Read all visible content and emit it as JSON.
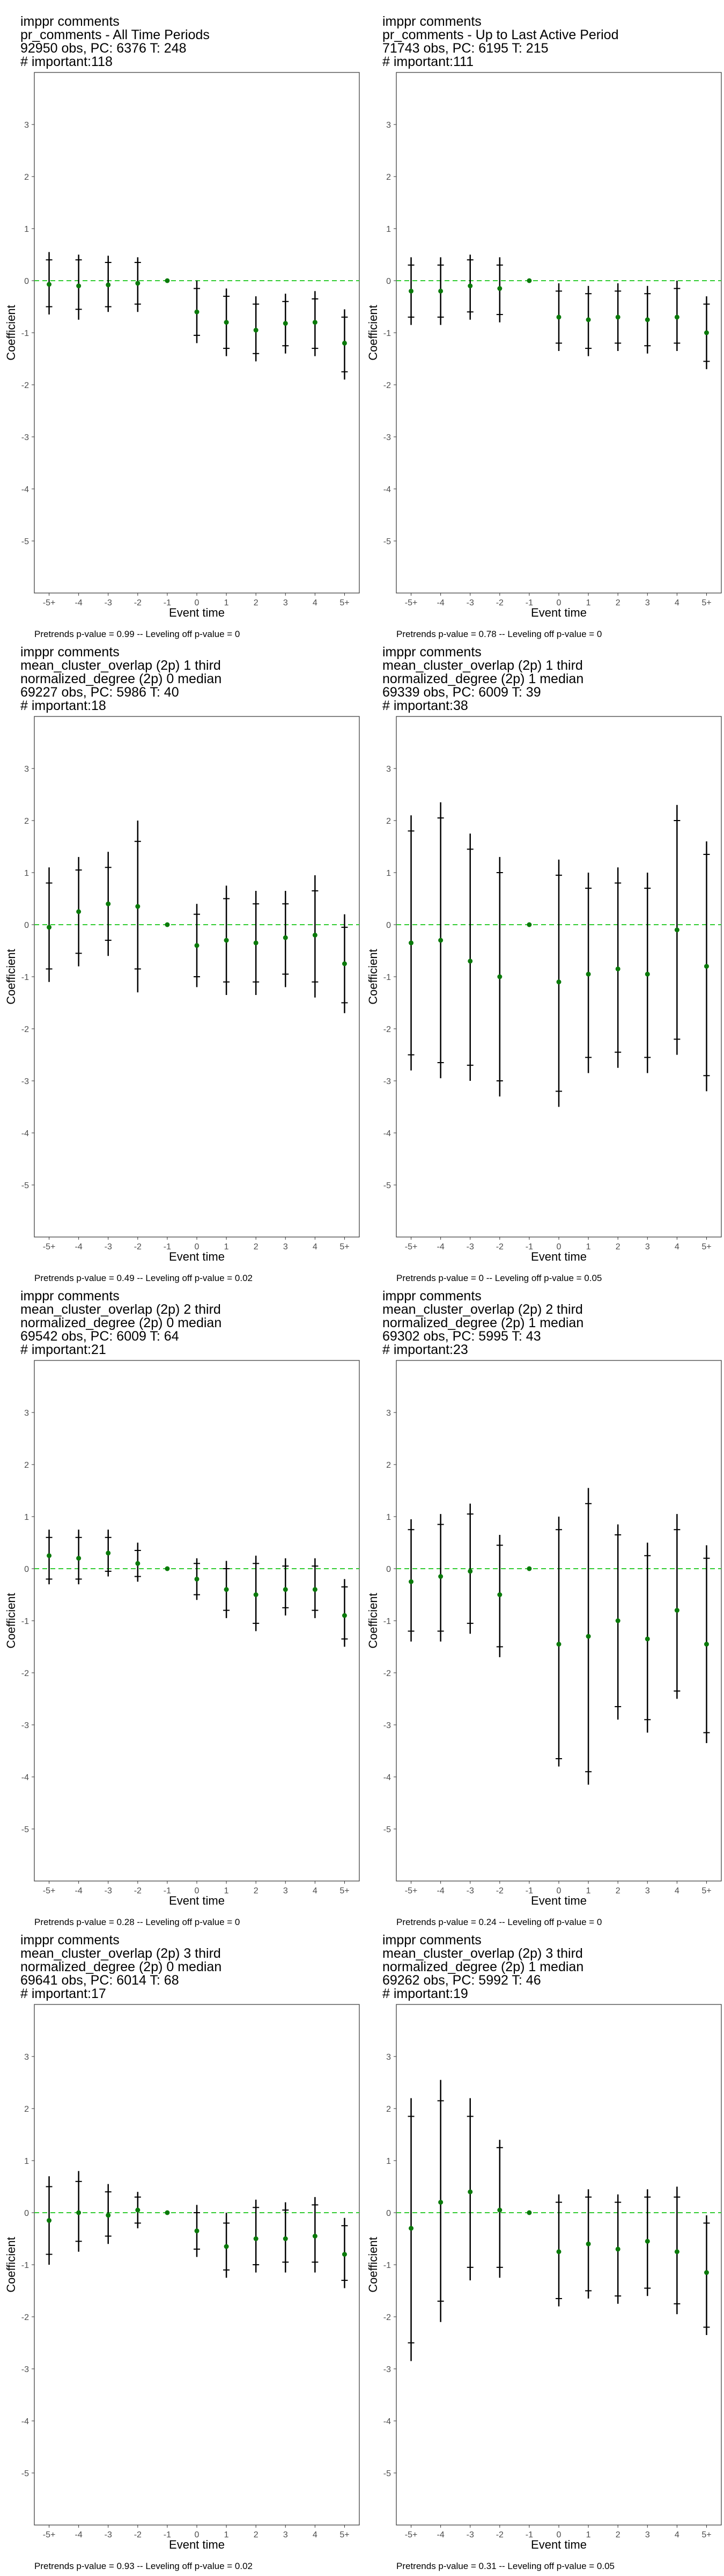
{
  "chart_data": [
    {
      "type": "scatter",
      "title_lines": [
        " imppr comments",
        "pr_comments - All Time Periods",
        "92950 obs, PC: 6376 T: 248",
        "# important:118"
      ],
      "xlabel": "Event time",
      "ylabel": "Coefficient",
      "categories": [
        "-5+",
        "-4",
        "-3",
        "-2",
        "-1",
        "0",
        "1",
        "2",
        "3",
        "4",
        "5+"
      ],
      "ylim": [
        -6,
        4
      ],
      "yticks": [
        -5,
        -4,
        -3,
        -2,
        -1,
        0,
        1,
        2,
        3
      ],
      "reference_line": 0,
      "estimate": [
        -0.07,
        -0.1,
        -0.08,
        -0.05,
        0,
        -0.6,
        -0.8,
        -0.95,
        -0.82,
        -0.8,
        -1.2
      ],
      "ci_outer_low": [
        -0.65,
        -0.75,
        -0.6,
        -0.6,
        0,
        -1.2,
        -1.45,
        -1.55,
        -1.4,
        -1.45,
        -1.9
      ],
      "ci_outer_high": [
        0.55,
        0.5,
        0.48,
        0.45,
        0,
        0.0,
        -0.15,
        -0.3,
        -0.25,
        -0.2,
        -0.55
      ],
      "ci_inner_low": [
        -0.5,
        -0.55,
        -0.5,
        -0.45,
        0,
        -1.05,
        -1.3,
        -1.4,
        -1.25,
        -1.3,
        -1.75
      ],
      "ci_inner_high": [
        0.4,
        0.4,
        0.35,
        0.35,
        0,
        -0.15,
        -0.3,
        -0.45,
        -0.4,
        -0.35,
        -0.7
      ],
      "footnote": "Pretrends p-value = 0.99 -- Leveling off p-value = 0",
      "colors": {
        "point": "#0a7a0a",
        "ref_line": "#33cc33",
        "ci": "#000000"
      }
    },
    {
      "type": "scatter",
      "title_lines": [
        " imppr comments",
        "pr_comments - Up to Last Active Period",
        "71743 obs, PC: 6195 T: 215",
        "# important:111"
      ],
      "xlabel": "Event time",
      "ylabel": "Coefficient",
      "categories": [
        "-5+",
        "-4",
        "-3",
        "-2",
        "-1",
        "0",
        "1",
        "2",
        "3",
        "4",
        "5+"
      ],
      "ylim": [
        -6,
        4
      ],
      "yticks": [
        -5,
        -4,
        -3,
        -2,
        -1,
        0,
        1,
        2,
        3
      ],
      "reference_line": 0,
      "estimate": [
        -0.2,
        -0.2,
        -0.1,
        -0.15,
        0,
        -0.7,
        -0.75,
        -0.7,
        -0.75,
        -0.7,
        -1.0
      ],
      "ci_outer_low": [
        -0.85,
        -0.85,
        -0.75,
        -0.8,
        0,
        -1.35,
        -1.45,
        -1.35,
        -1.4,
        -1.35,
        -1.7
      ],
      "ci_outer_high": [
        0.45,
        0.45,
        0.5,
        0.45,
        0,
        -0.05,
        -0.1,
        -0.05,
        -0.1,
        0.0,
        -0.3
      ],
      "ci_inner_low": [
        -0.7,
        -0.7,
        -0.6,
        -0.65,
        0,
        -1.2,
        -1.3,
        -1.2,
        -1.25,
        -1.2,
        -1.55
      ],
      "ci_inner_high": [
        0.3,
        0.3,
        0.4,
        0.3,
        0,
        -0.2,
        -0.25,
        -0.2,
        -0.25,
        -0.15,
        -0.45
      ],
      "footnote": "Pretrends p-value = 0.78 -- Leveling off p-value = 0",
      "colors": {
        "point": "#0a7a0a",
        "ref_line": "#33cc33",
        "ci": "#000000"
      }
    },
    {
      "type": "scatter",
      "title_lines": [
        " imppr comments",
        "mean_cluster_overlap (2p) 1 third",
        "normalized_degree (2p) 0 median",
        "69227 obs, PC: 5986 T: 40",
        "# important:18"
      ],
      "xlabel": "Event time",
      "ylabel": "Coefficient",
      "categories": [
        "-5+",
        "-4",
        "-3",
        "-2",
        "-1",
        "0",
        "1",
        "2",
        "3",
        "4",
        "5+"
      ],
      "ylim": [
        -6,
        4
      ],
      "yticks": [
        -5,
        -4,
        -3,
        -2,
        -1,
        0,
        1,
        2,
        3
      ],
      "reference_line": 0,
      "estimate": [
        -0.05,
        0.25,
        0.4,
        0.35,
        0,
        -0.4,
        -0.3,
        -0.35,
        -0.25,
        -0.2,
        -0.75
      ],
      "ci_outer_low": [
        -1.1,
        -0.8,
        -0.6,
        -1.3,
        0,
        -1.2,
        -1.35,
        -1.35,
        -1.2,
        -1.4,
        -1.7
      ],
      "ci_outer_high": [
        1.1,
        1.3,
        1.4,
        2.0,
        0,
        0.4,
        0.75,
        0.65,
        0.65,
        0.95,
        0.2
      ],
      "ci_inner_low": [
        -0.85,
        -0.55,
        -0.3,
        -0.85,
        0,
        -1.0,
        -1.1,
        -1.1,
        -0.95,
        -1.1,
        -1.5
      ],
      "ci_inner_high": [
        0.8,
        1.05,
        1.1,
        1.6,
        0,
        0.2,
        0.5,
        0.4,
        0.4,
        0.65,
        -0.05
      ],
      "footnote": "Pretrends p-value = 0.49 -- Leveling off p-value = 0.02",
      "colors": {
        "point": "#0a7a0a",
        "ref_line": "#33cc33",
        "ci": "#000000"
      }
    },
    {
      "type": "scatter",
      "title_lines": [
        " imppr comments",
        "mean_cluster_overlap (2p) 1 third",
        "normalized_degree (2p) 1 median",
        "69339 obs, PC: 6009 T: 39",
        "# important:38"
      ],
      "xlabel": "Event time",
      "ylabel": "Coefficient",
      "categories": [
        "-5+",
        "-4",
        "-3",
        "-2",
        "-1",
        "0",
        "1",
        "2",
        "3",
        "4",
        "5+"
      ],
      "ylim": [
        -6,
        4
      ],
      "yticks": [
        -5,
        -4,
        -3,
        -2,
        -1,
        0,
        1,
        2,
        3
      ],
      "reference_line": 0,
      "estimate": [
        -0.35,
        -0.3,
        -0.7,
        -1.0,
        0,
        -1.1,
        -0.95,
        -0.85,
        -0.95,
        -0.1,
        -0.8
      ],
      "ci_outer_low": [
        -2.8,
        -2.95,
        -3.0,
        -3.3,
        0,
        -3.5,
        -2.85,
        -2.75,
        -2.85,
        -2.5,
        -3.2
      ],
      "ci_outer_high": [
        2.1,
        2.35,
        1.75,
        1.3,
        0,
        1.25,
        1.0,
        1.1,
        1.0,
        2.3,
        1.6
      ],
      "ci_inner_low": [
        -2.5,
        -2.65,
        -2.7,
        -3.0,
        0,
        -3.2,
        -2.55,
        -2.45,
        -2.55,
        -2.2,
        -2.9
      ],
      "ci_inner_high": [
        1.8,
        2.05,
        1.45,
        1.0,
        0,
        0.95,
        0.7,
        0.8,
        0.7,
        2.0,
        1.35
      ],
      "footnote": "Pretrends p-value = 0 -- Leveling off p-value = 0.05",
      "colors": {
        "point": "#0a7a0a",
        "ref_line": "#33cc33",
        "ci": "#000000"
      }
    },
    {
      "type": "scatter",
      "title_lines": [
        " imppr comments",
        "mean_cluster_overlap (2p) 2 third",
        "normalized_degree (2p) 0 median",
        "69542 obs, PC: 6009 T: 64",
        "# important:21"
      ],
      "xlabel": "Event time",
      "ylabel": "Coefficient",
      "categories": [
        "-5+",
        "-4",
        "-3",
        "-2",
        "-1",
        "0",
        "1",
        "2",
        "3",
        "4",
        "5+"
      ],
      "ylim": [
        -6,
        4
      ],
      "yticks": [
        -5,
        -4,
        -3,
        -2,
        -1,
        0,
        1,
        2,
        3
      ],
      "reference_line": 0,
      "estimate": [
        0.25,
        0.2,
        0.3,
        0.1,
        0,
        -0.2,
        -0.4,
        -0.5,
        -0.4,
        -0.4,
        -0.9
      ],
      "ci_outer_low": [
        -0.3,
        -0.3,
        -0.15,
        -0.25,
        0,
        -0.6,
        -0.95,
        -1.2,
        -0.9,
        -0.95,
        -1.5
      ],
      "ci_outer_high": [
        0.75,
        0.75,
        0.75,
        0.5,
        0,
        0.2,
        0.15,
        0.25,
        0.2,
        0.2,
        -0.2
      ],
      "ci_inner_low": [
        -0.2,
        -0.2,
        -0.05,
        -0.15,
        0,
        -0.5,
        -0.8,
        -1.05,
        -0.75,
        -0.8,
        -1.35
      ],
      "ci_inner_high": [
        0.6,
        0.6,
        0.6,
        0.35,
        0,
        0.1,
        0.0,
        0.1,
        0.05,
        0.05,
        -0.35
      ],
      "footnote": "Pretrends p-value = 0.28 -- Leveling off p-value = 0",
      "colors": {
        "point": "#0a7a0a",
        "ref_line": "#33cc33",
        "ci": "#000000"
      }
    },
    {
      "type": "scatter",
      "title_lines": [
        " imppr comments",
        "mean_cluster_overlap (2p) 2 third",
        "normalized_degree (2p) 1 median",
        "69302 obs, PC: 5995 T: 43",
        "# important:23"
      ],
      "xlabel": "Event time",
      "ylabel": "Coefficient",
      "categories": [
        "-5+",
        "-4",
        "-3",
        "-2",
        "-1",
        "0",
        "1",
        "2",
        "3",
        "4",
        "5+"
      ],
      "ylim": [
        -6,
        4
      ],
      "yticks": [
        -5,
        -4,
        -3,
        -2,
        -1,
        0,
        1,
        2,
        3
      ],
      "reference_line": 0,
      "estimate": [
        -0.25,
        -0.15,
        -0.05,
        -0.5,
        0,
        -1.45,
        -1.3,
        -1.0,
        -1.35,
        -0.8,
        -1.45
      ],
      "ci_outer_low": [
        -1.4,
        -1.4,
        -1.25,
        -1.7,
        0,
        -3.8,
        -4.15,
        -2.9,
        -3.15,
        -2.5,
        -3.35
      ],
      "ci_outer_high": [
        0.95,
        1.05,
        1.25,
        0.65,
        0,
        1.0,
        1.55,
        0.85,
        0.5,
        1.05,
        0.45
      ],
      "ci_inner_low": [
        -1.2,
        -1.2,
        -1.05,
        -1.5,
        0,
        -3.65,
        -3.9,
        -2.65,
        -2.9,
        -2.35,
        -3.15
      ],
      "ci_inner_high": [
        0.75,
        0.85,
        1.05,
        0.45,
        0,
        0.75,
        1.25,
        0.65,
        0.25,
        0.75,
        0.2
      ],
      "footnote": "Pretrends p-value = 0.24 -- Leveling off p-value = 0",
      "colors": {
        "point": "#0a7a0a",
        "ref_line": "#33cc33",
        "ci": "#000000"
      }
    },
    {
      "type": "scatter",
      "title_lines": [
        " imppr comments",
        "mean_cluster_overlap (2p) 3 third",
        "normalized_degree (2p) 0 median",
        "69641 obs, PC: 6014 T: 68",
        "# important:17"
      ],
      "xlabel": "Event time",
      "ylabel": "Coefficient",
      "categories": [
        "-5+",
        "-4",
        "-3",
        "-2",
        "-1",
        "0",
        "1",
        "2",
        "3",
        "4",
        "5+"
      ],
      "ylim": [
        -6,
        4
      ],
      "yticks": [
        -5,
        -4,
        -3,
        -2,
        -1,
        0,
        1,
        2,
        3
      ],
      "reference_line": 0,
      "estimate": [
        -0.15,
        0.0,
        -0.05,
        0.05,
        0,
        -0.35,
        -0.65,
        -0.5,
        -0.5,
        -0.45,
        -0.8
      ],
      "ci_outer_low": [
        -1.0,
        -0.75,
        -0.6,
        -0.3,
        0,
        -0.85,
        -1.25,
        -1.15,
        -1.15,
        -1.15,
        -1.45
      ],
      "ci_outer_high": [
        0.7,
        0.8,
        0.55,
        0.4,
        0,
        0.15,
        -0.0,
        0.25,
        0.2,
        0.3,
        -0.1
      ],
      "ci_inner_low": [
        -0.8,
        -0.55,
        -0.45,
        -0.2,
        0,
        -0.7,
        -1.1,
        -1.0,
        -0.95,
        -0.95,
        -1.3
      ],
      "ci_inner_high": [
        0.5,
        0.6,
        0.4,
        0.3,
        0,
        0.0,
        -0.2,
        0.1,
        0.05,
        0.15,
        -0.25
      ],
      "footnote": "Pretrends p-value = 0.93 -- Leveling off p-value = 0.02",
      "colors": {
        "point": "#0a7a0a",
        "ref_line": "#33cc33",
        "ci": "#000000"
      }
    },
    {
      "type": "scatter",
      "title_lines": [
        " imppr comments",
        "mean_cluster_overlap (2p) 3 third",
        "normalized_degree (2p) 1 median",
        "69262 obs, PC: 5992 T: 46",
        "# important:19"
      ],
      "xlabel": "Event time",
      "ylabel": "Coefficient",
      "categories": [
        "-5+",
        "-4",
        "-3",
        "-2",
        "-1",
        "0",
        "1",
        "2",
        "3",
        "4",
        "5+"
      ],
      "ylim": [
        -6,
        4
      ],
      "yticks": [
        -5,
        -4,
        -3,
        -2,
        -1,
        0,
        1,
        2,
        3
      ],
      "reference_line": 0,
      "estimate": [
        -0.3,
        0.2,
        0.4,
        0.05,
        0,
        -0.75,
        -0.6,
        -0.7,
        -0.55,
        -0.75,
        -1.15
      ],
      "ci_outer_low": [
        -2.85,
        -2.1,
        -1.3,
        -1.25,
        0,
        -1.8,
        -1.65,
        -1.75,
        -1.6,
        -1.95,
        -2.35
      ],
      "ci_outer_high": [
        2.2,
        2.55,
        2.2,
        1.4,
        0,
        0.35,
        0.45,
        0.35,
        0.45,
        0.5,
        -0.05
      ],
      "ci_inner_low": [
        -2.5,
        -1.7,
        -1.05,
        -1.05,
        0,
        -1.65,
        -1.5,
        -1.6,
        -1.45,
        -1.75,
        -2.2
      ],
      "ci_inner_high": [
        1.85,
        2.15,
        1.85,
        1.25,
        0,
        0.2,
        0.3,
        0.2,
        0.3,
        0.3,
        -0.2
      ],
      "footnote": "Pretrends p-value = 0.31 -- Leveling off p-value = 0.05",
      "colors": {
        "point": "#0a7a0a",
        "ref_line": "#33cc33",
        "ci": "#000000"
      }
    }
  ]
}
